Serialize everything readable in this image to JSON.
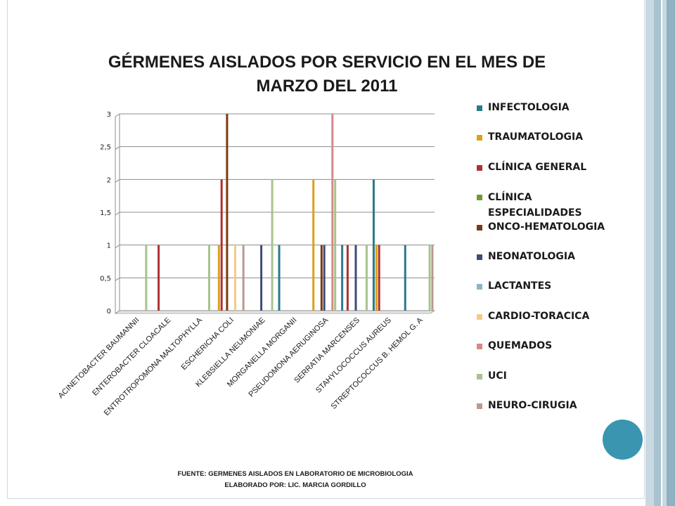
{
  "slide": {
    "title_line1": "GÉRMENES AISLADOS POR SERVICIO EN EL MES DE",
    "title_line2": "MARZO DEL 2011",
    "footnote_line1": "FUENTE: GERMENES AISLADOS EN LABORATORIO DE MICROBIOLOGIA",
    "footnote_line2": "ELABORADO POR: LIC. MARCIA GORDILLO",
    "accent_circle_color": "#3a95b0",
    "stripe_colors": [
      "#a9c3cf",
      "#c9d9e1",
      "#8fb1c1"
    ]
  },
  "chart_data": {
    "type": "bar",
    "title": "GÉRMENES AISLADOS POR SERVICIO EN EL MES DE MARZO DEL 2011",
    "xlabel": "",
    "ylabel": "",
    "ylim": [
      0,
      3
    ],
    "yticks": [
      0,
      0.5,
      1,
      1.5,
      2,
      2.5,
      3
    ],
    "ytick_labels": [
      "0",
      "0,5",
      "1",
      "1,5",
      "2",
      "2,5",
      "3"
    ],
    "grid": true,
    "legend_position": "right",
    "categories": [
      "ACINETOBACTER BAUMANNII",
      "ENTEROBACTER CLOACALE",
      "ENTROTROPOMONA MALTOPHYLLA",
      "ESCHERICHA COLI",
      "KLEBSIELLA NEUMONIAE",
      "MORGANELLA MORGANII",
      "PSEUDOMONA AERUGINOSA",
      "SERRATIA MARCENSES",
      "STAHYLOCOCCUS AUREUS",
      "STREPTOCOCCUS B. HEMOL G. A"
    ],
    "series": [
      {
        "name": "INFECTOLOGIA",
        "color": "#2a7a8c",
        "values": [
          0,
          0,
          0,
          0,
          0,
          1,
          0,
          1,
          2,
          1
        ]
      },
      {
        "name": "TRAUMATOLOGIA",
        "color": "#d9a21b",
        "values": [
          0,
          0,
          0,
          1,
          0,
          0,
          2,
          0,
          1,
          0
        ]
      },
      {
        "name": "CLÍNICA GENERAL",
        "color": "#b03030",
        "values": [
          0,
          1,
          0,
          2,
          0,
          0,
          0,
          1,
          1,
          0
        ]
      },
      {
        "name": "CLÍNICA ESPECIALIDADES",
        "color": "#6e9a3a",
        "values": [
          0,
          0,
          0,
          0,
          0,
          0,
          0,
          0,
          0,
          0
        ]
      },
      {
        "name": "ONCO-HEMATOLOGIA",
        "color": "#7a3b10",
        "values": [
          0,
          0,
          0,
          3,
          0,
          0,
          1,
          0,
          0,
          0
        ]
      },
      {
        "name": "NEONATOLOGIA",
        "color": "#3f4b7a",
        "values": [
          0,
          0,
          0,
          0,
          1,
          0,
          1,
          1,
          0,
          0
        ]
      },
      {
        "name": "LACTANTES",
        "color": "#8fb4c6",
        "values": [
          0,
          0,
          0,
          0,
          0,
          0,
          0,
          0,
          0,
          0
        ]
      },
      {
        "name": "CARDIO-TORACICA",
        "color": "#f6c98a",
        "values": [
          0,
          0,
          0,
          1,
          0,
          0,
          0,
          0,
          0,
          0
        ]
      },
      {
        "name": "QUEMADOS",
        "color": "#d48a8a",
        "values": [
          0,
          0,
          0,
          0,
          0,
          0,
          3,
          0,
          0,
          0
        ]
      },
      {
        "name": "UCI",
        "color": "#a8c38c",
        "values": [
          1,
          0,
          1,
          0,
          2,
          0,
          2,
          1,
          0,
          1
        ]
      },
      {
        "name": "NEURO-CIRUGIA",
        "color": "#b89a90",
        "values": [
          0,
          0,
          0,
          1,
          0,
          0,
          0,
          0,
          0,
          1
        ]
      }
    ]
  }
}
